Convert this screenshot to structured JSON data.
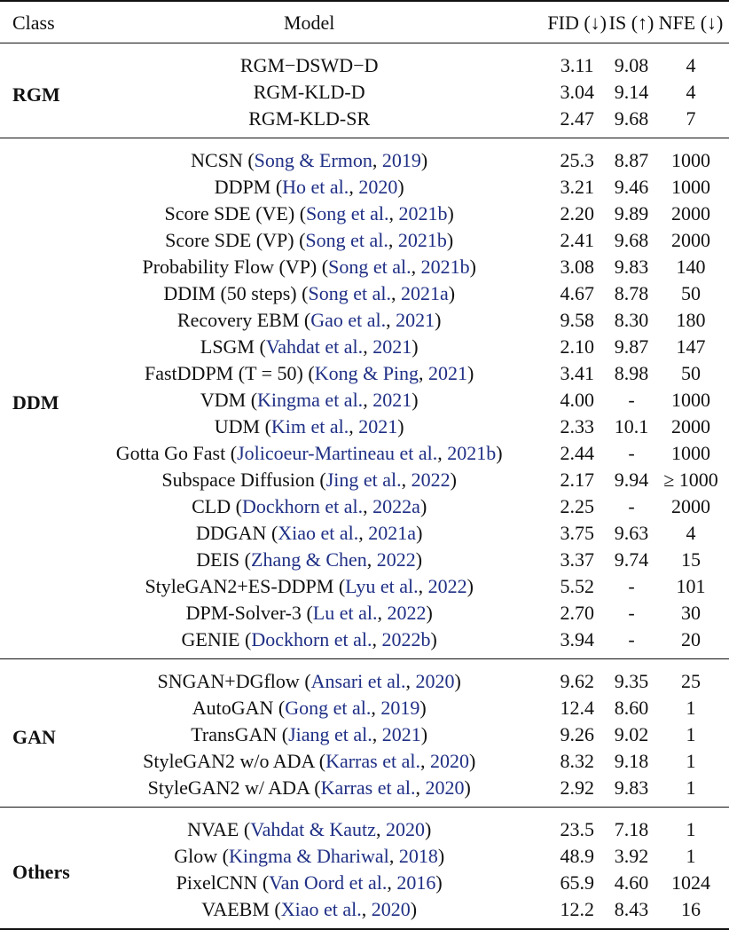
{
  "table": {
    "headers": {
      "class": "Class",
      "model": "Model",
      "fid": "FID (↓)",
      "is": "IS (↑)",
      "nfe": "NFE (↓)"
    },
    "link_color": "#1f2f85",
    "groups": [
      {
        "class": "RGM",
        "rows": [
          {
            "model": "RGM−DSWD−D",
            "cite": "",
            "fid": "3.11",
            "is": "9.08",
            "nfe": "4"
          },
          {
            "model": "RGM-KLD-D",
            "cite": "",
            "fid": "3.04",
            "is": "9.14",
            "nfe": "4"
          },
          {
            "model": "RGM-KLD-SR",
            "cite": "",
            "fid": "2.47",
            "is": "9.68",
            "nfe": "7"
          }
        ]
      },
      {
        "class": "DDM",
        "rows": [
          {
            "model": "NCSN",
            "cite_author": "Song & Ermon",
            "cite_year": "2019",
            "fid": "25.3",
            "is": "8.87",
            "nfe": "1000"
          },
          {
            "model": "DDPM",
            "cite_author": "Ho et al.",
            "cite_year": "2020",
            "fid": "3.21",
            "is": "9.46",
            "nfe": "1000"
          },
          {
            "model": "Score SDE (VE)",
            "cite_author": "Song et al.",
            "cite_year": "2021b",
            "fid": "2.20",
            "is": "9.89",
            "nfe": "2000"
          },
          {
            "model": "Score SDE (VP)",
            "cite_author": "Song et al.",
            "cite_year": "2021b",
            "fid": "2.41",
            "is": "9.68",
            "nfe": "2000"
          },
          {
            "model": "Probability Flow (VP)",
            "cite_author": "Song et al.",
            "cite_year": "2021b",
            "fid": "3.08",
            "is": "9.83",
            "nfe": "140"
          },
          {
            "model": "DDIM (50 steps)",
            "cite_author": "Song et al.",
            "cite_year": "2021a",
            "fid": "4.67",
            "is": "8.78",
            "nfe": "50"
          },
          {
            "model": "Recovery EBM",
            "cite_author": "Gao et al.",
            "cite_year": "2021",
            "fid": "9.58",
            "is": "8.30",
            "nfe": "180"
          },
          {
            "model": "LSGM",
            "cite_author": "Vahdat et al.",
            "cite_year": "2021",
            "fid": "2.10",
            "is": "9.87",
            "nfe": "147"
          },
          {
            "model": "FastDDPM (T = 50)",
            "cite_author": "Kong & Ping",
            "cite_year": "2021",
            "fid": "3.41",
            "is": "8.98",
            "nfe": "50"
          },
          {
            "model": "VDM",
            "cite_author": "Kingma et al.",
            "cite_year": "2021",
            "fid": "4.00",
            "is": "-",
            "nfe": "1000"
          },
          {
            "model": "UDM",
            "cite_author": "Kim et al.",
            "cite_year": "2021",
            "fid": "2.33",
            "is": "10.1",
            "nfe": "2000"
          },
          {
            "model": "Gotta Go Fast",
            "cite_author": "Jolicoeur-Martineau et al.",
            "cite_year": "2021b",
            "fid": "2.44",
            "is": "-",
            "nfe": "1000"
          },
          {
            "model": "Subspace Diffusion",
            "cite_author": "Jing et al.",
            "cite_year": "2022",
            "fid": "2.17",
            "is": "9.94",
            "nfe": "≥ 1000"
          },
          {
            "model": "CLD",
            "cite_author": "Dockhorn et al.",
            "cite_year": "2022a",
            "fid": "2.25",
            "is": "-",
            "nfe": "2000"
          },
          {
            "model": "DDGAN",
            "cite_author": "Xiao et al.",
            "cite_year": "2021a",
            "fid": "3.75",
            "is": "9.63",
            "nfe": "4"
          },
          {
            "model": "DEIS",
            "cite_author": "Zhang & Chen",
            "cite_year": "2022",
            "fid": "3.37",
            "is": "9.74",
            "nfe": "15"
          },
          {
            "model": "StyleGAN2+ES-DDPM",
            "cite_author": "Lyu et al.",
            "cite_year": "2022",
            "fid": "5.52",
            "is": "-",
            "nfe": "101"
          },
          {
            "model": "DPM-Solver-3",
            "cite_author": "Lu et al.",
            "cite_year": "2022",
            "fid": "2.70",
            "is": "-",
            "nfe": "30"
          },
          {
            "model": "GENIE",
            "cite_author": "Dockhorn et al.",
            "cite_year": "2022b",
            "fid": "3.94",
            "is": "-",
            "nfe": "20"
          }
        ]
      },
      {
        "class": "GAN",
        "rows": [
          {
            "model": "SNGAN+DGflow",
            "cite_author": "Ansari et al.",
            "cite_year": "2020",
            "fid": "9.62",
            "is": "9.35",
            "nfe": "25"
          },
          {
            "model": "AutoGAN",
            "cite_author": "Gong et al.",
            "cite_year": "2019",
            "fid": "12.4",
            "is": "8.60",
            "nfe": "1"
          },
          {
            "model": "TransGAN",
            "cite_author": "Jiang et al.",
            "cite_year": "2021",
            "fid": "9.26",
            "is": "9.02",
            "nfe": "1"
          },
          {
            "model": "StyleGAN2 w/o ADA",
            "cite_author": "Karras et al.",
            "cite_year": "2020",
            "fid": "8.32",
            "is": "9.18",
            "nfe": "1"
          },
          {
            "model": "StyleGAN2 w/ ADA",
            "cite_author": "Karras et al.",
            "cite_year": "2020",
            "fid": "2.92",
            "is": "9.83",
            "nfe": "1"
          }
        ]
      },
      {
        "class": "Others",
        "rows": [
          {
            "model": "NVAE",
            "cite_author": "Vahdat & Kautz",
            "cite_year": "2020",
            "fid": "23.5",
            "is": "7.18",
            "nfe": "1"
          },
          {
            "model": "Glow",
            "cite_author": "Kingma & Dhariwal",
            "cite_year": "2018",
            "fid": "48.9",
            "is": "3.92",
            "nfe": "1"
          },
          {
            "model": "PixelCNN",
            "cite_author": "Van Oord et al.",
            "cite_year": "2016",
            "fid": "65.9",
            "is": "4.60",
            "nfe": "1024"
          },
          {
            "model": "VAEBM",
            "cite_author": "Xiao et al.",
            "cite_year": "2020",
            "fid": "12.2",
            "is": "8.43",
            "nfe": "16"
          }
        ]
      }
    ]
  }
}
